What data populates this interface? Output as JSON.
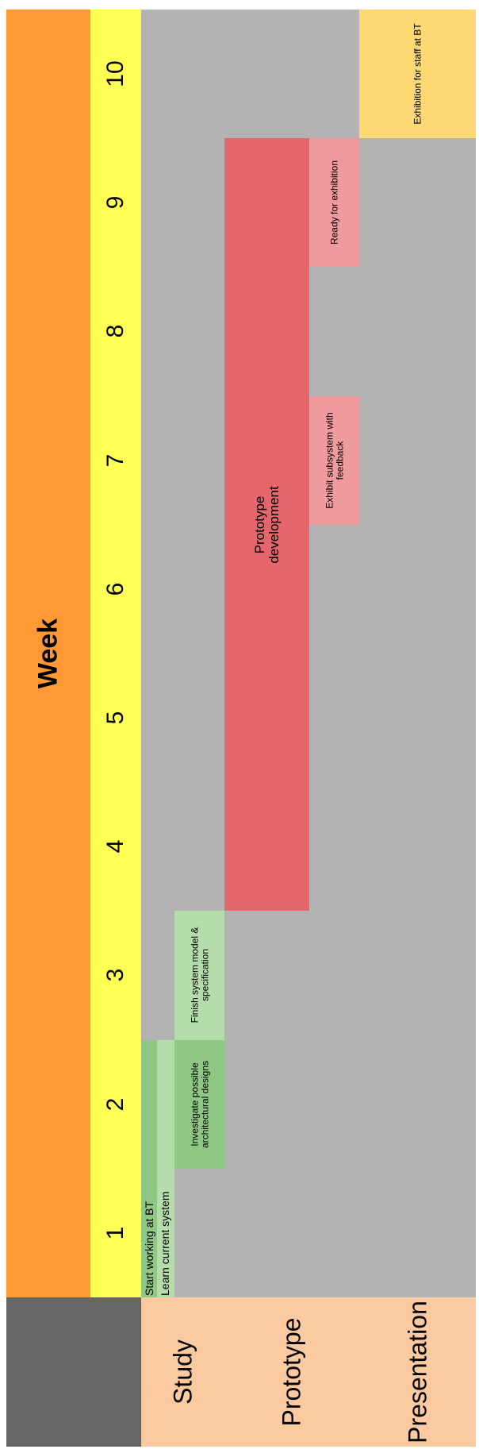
{
  "header": {
    "title": "Week",
    "weeks": [
      "1",
      "2",
      "3",
      "4",
      "5",
      "6",
      "7",
      "8",
      "9",
      "10"
    ]
  },
  "phases": [
    "Study",
    "Prototype",
    "Presentation"
  ],
  "tasks": [
    {
      "label": "Start working at BT",
      "start_week": 1,
      "end_week": 2,
      "lane": 0,
      "color": "#8fc785"
    },
    {
      "label": "Learn current system",
      "start_week": 1,
      "end_week": 2,
      "lane": 1,
      "color": "#b5ddab"
    },
    {
      "label": "Investigate possible architectural designs",
      "start_week": 2,
      "end_week": 2,
      "lane": 2,
      "color": "#8fc785"
    },
    {
      "label": "Finish system model & specification",
      "start_week": 3,
      "end_week": 3,
      "lane": 2,
      "color": "#b5ddab"
    },
    {
      "label": "Prototype development",
      "start_week": 4,
      "end_week": 9,
      "lane": 3,
      "color": "#e5666b"
    },
    {
      "label": "Exhibit subsystem with feedback",
      "start_week": 7,
      "end_week": 7,
      "lane": 4,
      "color": "#ef9a9d"
    },
    {
      "label": "Ready for exhibition",
      "start_week": 9,
      "end_week": 9,
      "lane": 4,
      "color": "#ef9a9d"
    },
    {
      "label": "Exhibition for staff at BT",
      "start_week": 10,
      "end_week": 10,
      "lane": 5,
      "color": "#fdd873"
    }
  ],
  "colors": {
    "title_band": "#ff9933",
    "week_band": "#ffff55",
    "grid_bg": "#b3b3b3",
    "corner": "#666666",
    "phase_bg": "#fbcaa1"
  }
}
